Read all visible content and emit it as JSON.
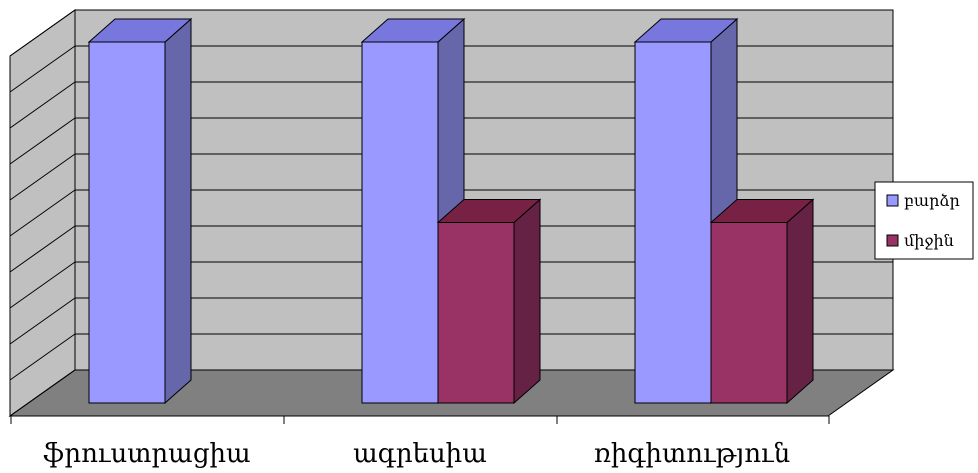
{
  "chart_data": {
    "type": "bar",
    "categories": [
      "ֆրուստրացիա",
      "ագրեսիա",
      "ռիգիտություն"
    ],
    "series": [
      {
        "name": "բարձր",
        "values": [
          10,
          10,
          10
        ],
        "color": "#9999FF",
        "side_color": "#6666AA",
        "top_color": "#7777DD"
      },
      {
        "name": "միջին",
        "values": [
          0,
          5,
          5
        ],
        "color": "#993366",
        "side_color": "#662244",
        "top_color": "#772244"
      }
    ],
    "ylim": [
      0,
      10
    ],
    "grid": true,
    "legend_position": "right",
    "style": "3d-column",
    "wall_color": "#C0C0C0",
    "floor_color": "#808080"
  }
}
